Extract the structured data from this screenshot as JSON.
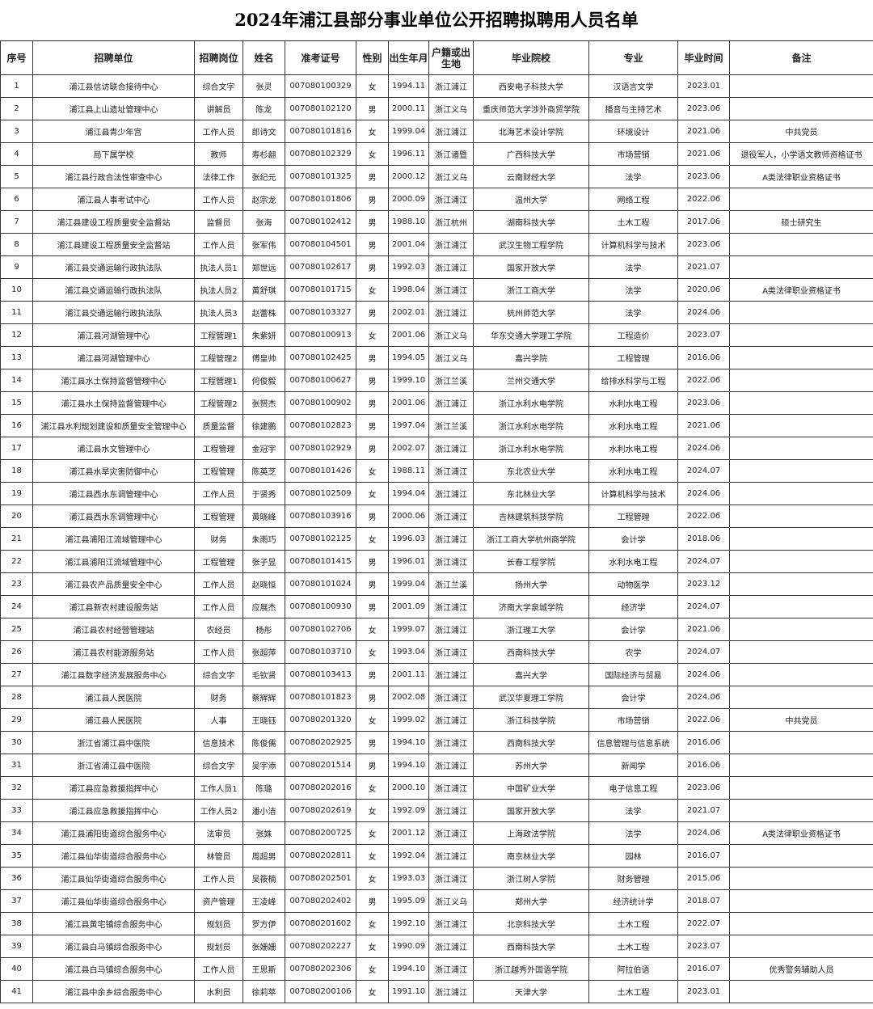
{
  "title": "2024年浦江县部分事业单位公开招聘拟聘用人员名单",
  "headers": [
    "序号",
    "招聘单位",
    "招聘岗位",
    "姓名",
    "准考证号",
    "性别",
    "出生年月",
    "户籍或出生地",
    "毕业院校",
    "专业",
    "毕业时间",
    "备注"
  ],
  "rows": [
    [
      "1",
      "浦江县信访联合接待中心",
      "综合文字",
      "张灵",
      "007080100329",
      "女",
      "1994.11",
      "浙江浦江",
      "西安电子科技大学",
      "汉语言文学",
      "2023.01",
      ""
    ],
    [
      "2",
      "浦江县上山遗址管理中心",
      "讲解员",
      "陈龙",
      "007080102120",
      "男",
      "2000.11",
      "浙江义乌",
      "重庆师范大学涉外商贸学院",
      "播音与主持艺术",
      "2023.06",
      ""
    ],
    [
      "3",
      "浦江县青少年宫",
      "工作人员",
      "郎诗文",
      "007080101816",
      "女",
      "1999.04",
      "浙江浦江",
      "北海艺术设计学院",
      "环境设计",
      "2021.06",
      "中共党员"
    ],
    [
      "4",
      "局下属学校",
      "教师",
      "寿杉翿",
      "007080102329",
      "女",
      "1996.11",
      "浙江诸暨",
      "广西科技大学",
      "市场营销",
      "2021.06",
      "退役军人，小学语文教师资格证书"
    ],
    [
      "5",
      "浦江县行政合法性审查中心",
      "法律工作",
      "张纪元",
      "007080101325",
      "男",
      "2000.12",
      "浙江义乌",
      "云南财经大学",
      "法学",
      "2023.06",
      "A类法律职业资格证书"
    ],
    [
      "6",
      "浦江县人事考试中心",
      "工作人员",
      "赵宗龙",
      "007080101806",
      "男",
      "2000.09",
      "浙江浦江",
      "温州大学",
      "网络工程",
      "2022.06",
      ""
    ],
    [
      "7",
      "浦江县建设工程质量安全监督站",
      "监督员",
      "张海",
      "007080102412",
      "男",
      "1988.10",
      "浙江杭州",
      "湖南科技大学",
      "土木工程",
      "2017.06",
      "硕士研究生"
    ],
    [
      "8",
      "浦江县建设工程质量安全监督站",
      "工作人员",
      "张军伟",
      "007080104501",
      "男",
      "2001.04",
      "浙江浦江",
      "武汉生物工程学院",
      "计算机科学与技术",
      "2023.06",
      ""
    ],
    [
      "9",
      "浦江县交通运输行政执法队",
      "执法人员1",
      "郑世远",
      "007080102617",
      "男",
      "1992.03",
      "浙江浦江",
      "国家开放大学",
      "法学",
      "2021.07",
      ""
    ],
    [
      "10",
      "浦江县交通运输行政执法队",
      "执法人员2",
      "黄舒琪",
      "007080101715",
      "女",
      "1998.04",
      "浙江浦江",
      "浙江工商大学",
      "法学",
      "2020.06",
      "A类法律职业资格证书"
    ],
    [
      "11",
      "浦江县交通运输行政执法队",
      "执法人员3",
      "赵蕾株",
      "007080103327",
      "男",
      "2002.01",
      "浙江浦江",
      "杭州师范大学",
      "法学",
      "2024.06",
      ""
    ],
    [
      "12",
      "浦江县河湖管理中心",
      "工程管理1",
      "朱紫妍",
      "007080100913",
      "女",
      "2001.06",
      "浙江义乌",
      "华东交通大学理工学院",
      "工程造价",
      "2023.07",
      ""
    ],
    [
      "13",
      "浦江县河湖管理中心",
      "工程管理2",
      "傅皇帅",
      "007080102425",
      "男",
      "1994.05",
      "浙江义乌",
      "嘉兴学院",
      "工程管理",
      "2016.06",
      ""
    ],
    [
      "14",
      "浦江县水土保持监督管理中心",
      "工程管理1",
      "何俊毅",
      "007080100627",
      "男",
      "1999.10",
      "浙江兰溪",
      "兰州交通大学",
      "给排水科学与工程",
      "2022.06",
      ""
    ],
    [
      "15",
      "浦江县水土保持监督管理中心",
      "工程管理2",
      "张赟杰",
      "007080100902",
      "男",
      "2001.06",
      "浙江浦江",
      "浙江水利水电学院",
      "水利水电工程",
      "2023.06",
      ""
    ],
    [
      "16",
      "浦江县水利规划建设和质量安全管理中心",
      "质量监督",
      "徐建鹏",
      "007080102823",
      "男",
      "1997.04",
      "浙江兰溪",
      "浙江水利水电学院",
      "水利水电工程",
      "2021.06",
      ""
    ],
    [
      "17",
      "浦江县水文管理中心",
      "工程管理",
      "金冠宇",
      "007080102929",
      "男",
      "2002.07",
      "浙江浦江",
      "浙江水利水电学院",
      "水利水电工程",
      "2024.06",
      ""
    ],
    [
      "18",
      "浦江县水旱灾害防御中心",
      "工程管理",
      "陈英芝",
      "007080101426",
      "女",
      "1988.11",
      "浙江浦江",
      "东北农业大学",
      "水利水电工程",
      "2024.07",
      ""
    ],
    [
      "19",
      "浦江县西水东调管理中心",
      "工作人员",
      "于贤秀",
      "007080102509",
      "女",
      "1994.04",
      "浙江浦江",
      "东北林业大学",
      "计算机科学与技术",
      "2024.06",
      ""
    ],
    [
      "20",
      "浦江县西水东调管理中心",
      "工程管理",
      "黄晓峰",
      "007080103916",
      "男",
      "2000.06",
      "浙江浦江",
      "吉林建筑科技学院",
      "工程管理",
      "2022.06",
      ""
    ],
    [
      "21",
      "浦江县浦阳江流域管理中心",
      "财务",
      "朱雨巧",
      "007080102125",
      "女",
      "1996.03",
      "浙江浦江",
      "浙江工商大学杭州商学院",
      "会计学",
      "2018.06",
      ""
    ],
    [
      "22",
      "浦江县浦阳江流域管理中心",
      "工程管理",
      "张子昱",
      "007080101415",
      "男",
      "1996.01",
      "浙江浦江",
      "长春工程学院",
      "水利水电工程",
      "2024.07",
      ""
    ],
    [
      "23",
      "浦江县农产品质量安全中心",
      "工作人员",
      "赵晓恒",
      "007080101024",
      "男",
      "1999.04",
      "浙江兰溪",
      "扬州大学",
      "动物医学",
      "2023.12",
      ""
    ],
    [
      "24",
      "浦江县新农村建设服务站",
      "工作人员",
      "应展杰",
      "007080100930",
      "男",
      "2001.09",
      "浙江浦江",
      "济南大学泉城学院",
      "经济学",
      "2024.07",
      ""
    ],
    [
      "25",
      "浦江县农村经营管理站",
      "农经员",
      "杨彤",
      "007080102706",
      "女",
      "1999.07",
      "浙江浦江",
      "浙江理工大学",
      "会计学",
      "2021.06",
      ""
    ],
    [
      "26",
      "浦江县农村能源服务站",
      "工作人员",
      "张超萍",
      "007080103710",
      "女",
      "1993.04",
      "浙江浦江",
      "西南科技大学",
      "农学",
      "2024.07",
      ""
    ],
    [
      "27",
      "浦江县数字经济发展服务中心",
      "综合文字",
      "毛钦贤",
      "007080103413",
      "男",
      "2001.11",
      "浙江浦江",
      "嘉兴大学",
      "国际经济与贸易",
      "2024.06",
      ""
    ],
    [
      "28",
      "浦江县人民医院",
      "财务",
      "蔡辉辉",
      "007080101823",
      "男",
      "2002.08",
      "浙江浦江",
      "武汉华夏理工学院",
      "会计学",
      "2024.06",
      ""
    ],
    [
      "29",
      "浦江县人民医院",
      "人事",
      "王晓钰",
      "007080201320",
      "女",
      "1999.02",
      "浙江浦江",
      "浙江科技学院",
      "市场营销",
      "2022.06",
      "中共党员"
    ],
    [
      "30",
      "浙江省浦江县中医院",
      "信息技术",
      "陈俊儒",
      "007080202925",
      "男",
      "1994.10",
      "浙江浦江",
      "西南科技大学",
      "信息管理与信息系统",
      "2016.06",
      ""
    ],
    [
      "31",
      "浙江省浦江县中医院",
      "综合文字",
      "吴宇添",
      "007080201514",
      "男",
      "1994.10",
      "浙江浦江",
      "苏州大学",
      "新闻学",
      "2016.06",
      ""
    ],
    [
      "32",
      "浦江县应急救援指挥中心",
      "工作人员1",
      "陈璐",
      "007080202016",
      "女",
      "2000.10",
      "浙江浦江",
      "中国矿业大学",
      "电子信息工程",
      "2023.06",
      ""
    ],
    [
      "33",
      "浦江县应急救援指挥中心",
      "工作人员2",
      "潘小洁",
      "007080202619",
      "女",
      "1992.09",
      "浙江浦江",
      "国家开放大学",
      "法学",
      "2021.07",
      ""
    ],
    [
      "34",
      "浦江县浦阳街道综合服务中心",
      "法审员",
      "张姝",
      "007080200725",
      "女",
      "2001.12",
      "浙江浦江",
      "上海政法学院",
      "法学",
      "2024.06",
      "A类法律职业资格证书"
    ],
    [
      "35",
      "浦江县仙华街道综合服务中心",
      "林管员",
      "周超男",
      "007080202811",
      "女",
      "1992.04",
      "浙江浦江",
      "南京林业大学",
      "园林",
      "2016.07",
      ""
    ],
    [
      "36",
      "浦江县仙华街道综合服务中心",
      "工作人员",
      "吴筱楠",
      "007080202501",
      "女",
      "1993.03",
      "浙江浦江",
      "浙江树人学院",
      "财务管理",
      "2015.06",
      ""
    ],
    [
      "37",
      "浦江县仙华街道综合服务中心",
      "资产管理",
      "王凌峰",
      "007080202402",
      "男",
      "1995.09",
      "浙江义乌",
      "郑州大学",
      "经济统计学",
      "2018.07",
      ""
    ],
    [
      "38",
      "浦江县黄宅镇综合服务中心",
      "规划员",
      "罗方伊",
      "007080201602",
      "女",
      "1992.10",
      "浙江浦江",
      "北京科技大学",
      "土木工程",
      "2022.07",
      ""
    ],
    [
      "39",
      "浦江县白马镇综合服务中心",
      "规划员",
      "张姗姗",
      "007080202227",
      "女",
      "1990.09",
      "浙江浦江",
      "西南科技大学",
      "土木工程",
      "2023.07",
      ""
    ],
    [
      "40",
      "浦江县白马镇综合服务中心",
      "工作人员",
      "王思斯",
      "007080202306",
      "女",
      "1994.10",
      "浙江浦江",
      "浙江越秀外国语学院",
      "阿拉伯语",
      "2016.07",
      "优秀警务辅助人员"
    ],
    [
      "41",
      "浦江县中余乡综合服务中心",
      "水利员",
      "徐莉苹",
      "007080200106",
      "女",
      "1991.10",
      "浙江浦江",
      "天津大学",
      "土木工程",
      "2023.01",
      ""
    ]
  ]
}
